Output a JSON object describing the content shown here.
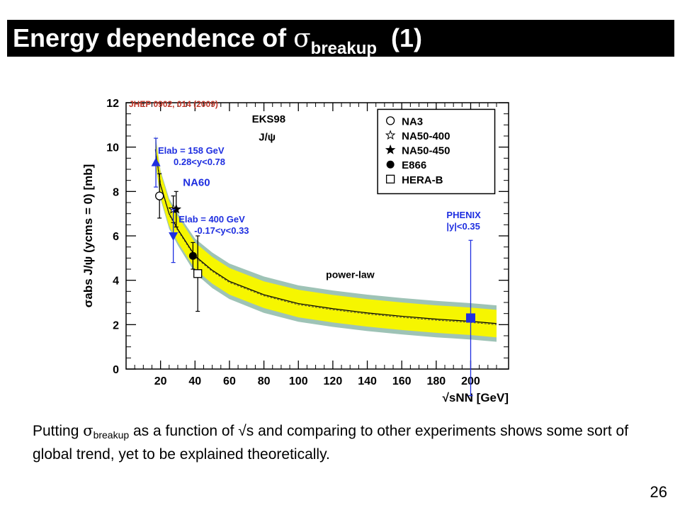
{
  "slide": {
    "title_prefix": "Energy dependence of ",
    "title_symbol": "σ",
    "title_sub": "breakup",
    "title_suffix": "(1)",
    "body_part1": "Putting ",
    "body_symbol": "σ",
    "body_sub": "breakup",
    "body_part2": " as a function of √s and comparing to other experiments shows some sort of global trend, yet to be explained theoretically.",
    "page_number": "26"
  },
  "chart_data": {
    "type": "scatter",
    "reference": "JHEP 0902, 014 (2009)",
    "xlabel": "√sNN [GeV]",
    "ylabel": "σabs J/ψ (ycms = 0) [mb]",
    "xlim": [
      0,
      222
    ],
    "ylim": [
      0,
      12
    ],
    "x_ticks": [
      20,
      40,
      60,
      80,
      100,
      120,
      140,
      160,
      180,
      200
    ],
    "y_ticks": [
      0,
      2,
      4,
      6,
      8,
      10,
      12
    ],
    "model_labels": [
      "EKS98",
      "J/ψ"
    ],
    "fit_label": "power-law",
    "fit_band": {
      "x": [
        17,
        20,
        25,
        30,
        40,
        50,
        60,
        80,
        100,
        120,
        140,
        160,
        180,
        200,
        215
      ],
      "center": [
        9.9,
        8.3,
        7.0,
        6.3,
        5.1,
        4.45,
        3.95,
        3.35,
        2.95,
        2.72,
        2.53,
        2.38,
        2.25,
        2.15,
        2.05
      ],
      "inner_half_width": [
        0.55,
        0.55,
        0.55,
        0.58,
        0.6,
        0.6,
        0.6,
        0.6,
        0.62,
        0.62,
        0.62,
        0.62,
        0.62,
        0.62,
        0.62
      ],
      "outer_half_width": [
        0.65,
        0.65,
        0.68,
        0.72,
        0.78,
        0.8,
        0.8,
        0.82,
        0.82,
        0.82,
        0.82,
        0.82,
        0.82,
        0.82,
        0.82
      ]
    },
    "legend_position": "top-right",
    "series": [
      {
        "name": "NA3",
        "marker": "open-circle",
        "color": "#000000",
        "points": [
          {
            "x": 19.4,
            "y": 7.8,
            "err": 1.0
          }
        ]
      },
      {
        "name": "NA50-400",
        "marker": "open-star",
        "color": "#000000",
        "points": [
          {
            "x": 27.4,
            "y": 7.2,
            "err": 0.6
          }
        ]
      },
      {
        "name": "NA50-450",
        "marker": "filled-star",
        "color": "#000000",
        "points": [
          {
            "x": 29.1,
            "y": 7.2,
            "err": 0.8
          }
        ]
      },
      {
        "name": "E866",
        "marker": "filled-circle",
        "color": "#000000",
        "points": [
          {
            "x": 38.8,
            "y": 5.1,
            "err": 0.6
          }
        ]
      },
      {
        "name": "HERA-B",
        "marker": "open-square",
        "color": "#000000",
        "points": [
          {
            "x": 41.6,
            "y": 4.3,
            "err": 1.7
          }
        ]
      },
      {
        "name": "NA60 158 GeV",
        "marker": "blue-triangle-up",
        "color": "#1f2fe0",
        "points": [
          {
            "x": 17.3,
            "y": 9.3,
            "err": 1.1
          }
        ]
      },
      {
        "name": "NA60 400 GeV",
        "marker": "blue-triangle-down",
        "color": "#1f2fe0",
        "points": [
          {
            "x": 27.4,
            "y": 6.0,
            "err": 1.2
          }
        ]
      },
      {
        "name": "PHENIX",
        "marker": "blue-square",
        "color": "#1f2fe0",
        "points": [
          {
            "x": 200,
            "y": 2.3,
            "err": 3.5
          }
        ]
      }
    ],
    "annotations": [
      {
        "text1": "E",
        "text2": "lab",
        "text3": " = 158 GeV",
        "text4": "0.28<y<0.78",
        "color": "#1f2fe0"
      },
      {
        "text1": "NA60",
        "color": "#1f2fe0"
      },
      {
        "text1": "E",
        "text2": "lab",
        "text3": " = 400 GeV",
        "text4": "-0.17<y<0.33",
        "color": "#1f2fe0"
      },
      {
        "text1": "PHENIX",
        "text4": "|y|<0.35",
        "color": "#1f2fe0"
      }
    ],
    "legend": [
      "NA3",
      "NA50-400",
      "NA50-450",
      "E866",
      "HERA-B"
    ]
  }
}
